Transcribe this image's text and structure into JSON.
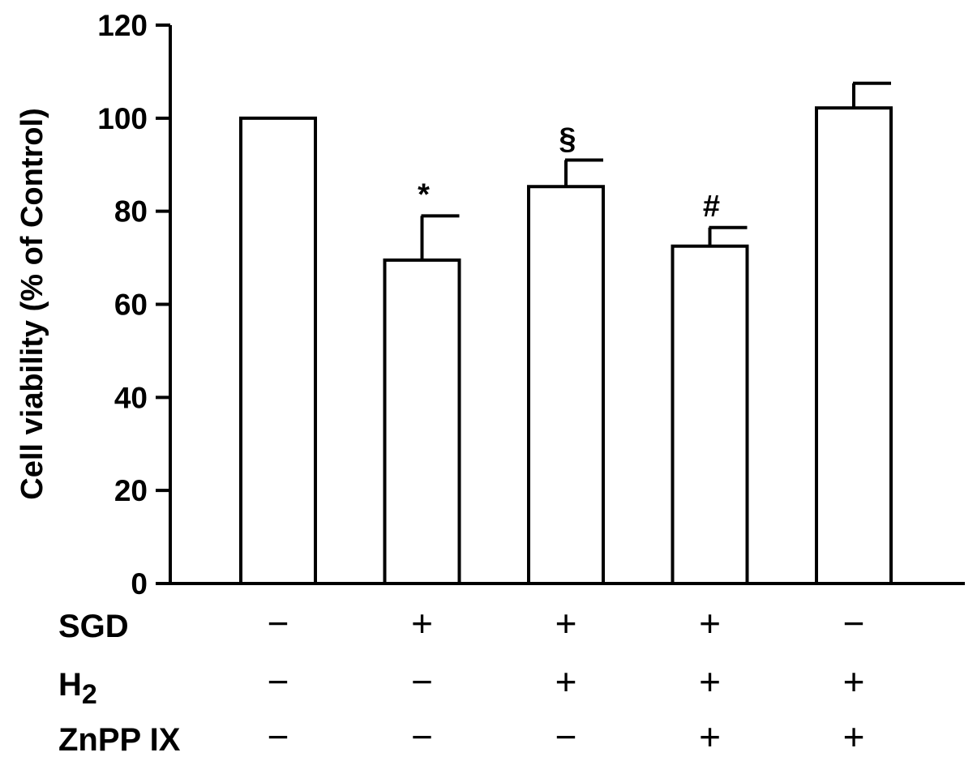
{
  "chart_data": {
    "type": "bar",
    "ylabel": "Cell viability (% of Control)",
    "ylim": [
      0,
      120
    ],
    "yticks": [
      0,
      20,
      40,
      60,
      80,
      100,
      120
    ],
    "values": [
      100,
      69.5,
      85.3,
      72.5,
      102.2
    ],
    "errors": [
      0,
      9.5,
      5.7,
      4.0,
      5.3
    ],
    "annotations": [
      "",
      "*",
      "§",
      "#",
      ""
    ],
    "bar_fill": "#ffffff",
    "bar_stroke": "#000000",
    "conditions": [
      {
        "label": "SGD",
        "marks": [
          "−",
          "+",
          "+",
          "+",
          "−"
        ]
      },
      {
        "label": "H",
        "subscript": "2",
        "marks": [
          "−",
          "−",
          "+",
          "+",
          "+"
        ]
      },
      {
        "label": "ZnPP IX",
        "marks": [
          "−",
          "−",
          "−",
          "+",
          "+"
        ]
      }
    ]
  }
}
